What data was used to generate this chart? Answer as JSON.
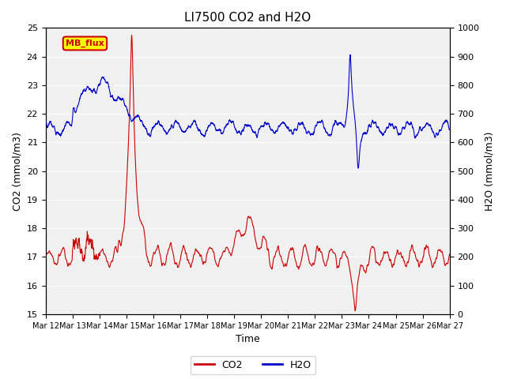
{
  "title": "LI7500 CO2 and H2O",
  "xlabel": "Time",
  "ylabel_left": "CO2 (mmol/m3)",
  "ylabel_right": "H2O (mmol/m3)",
  "co2_color": "#cc0000",
  "h2o_color": "#0000cc",
  "ylim_left": [
    15.0,
    25.0
  ],
  "ylim_right": [
    0,
    1000
  ],
  "yticks_left": [
    15.0,
    16.0,
    17.0,
    18.0,
    19.0,
    20.0,
    21.0,
    22.0,
    23.0,
    24.0,
    25.0
  ],
  "yticks_right": [
    0,
    100,
    200,
    300,
    400,
    500,
    600,
    700,
    800,
    900,
    1000
  ],
  "xtick_labels": [
    "Mar 12",
    "Mar 13",
    "Mar 14",
    "Mar 15",
    "Mar 16",
    "Mar 17",
    "Mar 18",
    "Mar 19",
    "Mar 20",
    "Mar 21",
    "Mar 22",
    "Mar 23",
    "Mar 24",
    "Mar 25",
    "Mar 26",
    "Mar 27"
  ],
  "annotation_text": "MB_flux",
  "annotation_bg": "#ffff00",
  "annotation_fg": "#cc0000",
  "background_color": "#f0f0f0",
  "grid_color": "#ffffff",
  "legend_entries": [
    "CO2",
    "H2O"
  ],
  "n_points": 3600
}
